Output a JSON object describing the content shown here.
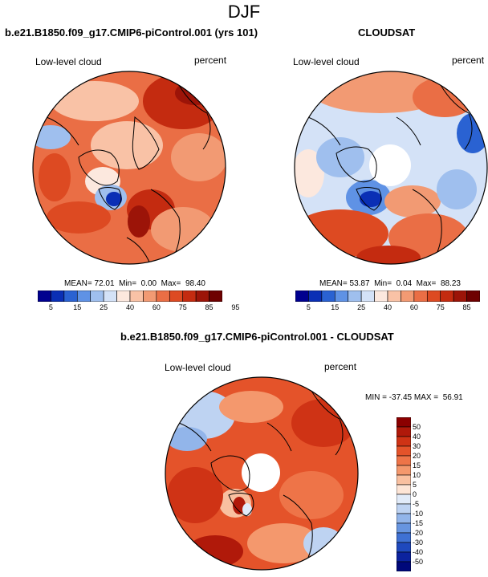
{
  "season": "DJF",
  "panels": [
    {
      "title": "b.e21.B1850.f09_g17.CMIP6-piControl.001 (yrs 101)",
      "variable": "Low-level cloud",
      "units": "percent",
      "stats": {
        "mean": "72.01",
        "min": "0.00",
        "max": "98.40"
      },
      "mean_label": "MEAN=",
      "min_label": "Min=",
      "max_label": "Max="
    },
    {
      "title": "CLOUDSAT",
      "variable": "Low-level cloud",
      "units": "percent",
      "stats": {
        "mean": "53.87",
        "min": "0.04",
        "max": "88.23"
      },
      "mean_label": "MEAN=",
      "min_label": "Min=",
      "max_label": "Max="
    },
    {
      "title": "b.e21.B1850.f09_g17.CMIP6-piControl.001 - CLOUDSAT",
      "variable": "Low-level cloud",
      "units": "percent",
      "range_text": "MIN = -37.45 MAX =  56.91"
    }
  ],
  "colorbar_abs": {
    "ticks": [
      "5",
      "15",
      "25",
      "40",
      "60",
      "75",
      "85",
      "95"
    ],
    "colors": [
      "#00008f",
      "#0a2fb5",
      "#2a62d2",
      "#5f92e5",
      "#9fbfee",
      "#d4e2f7",
      "#fce8de",
      "#f9c2a6",
      "#f29a73",
      "#ea6e45",
      "#dd4a22",
      "#c42b10",
      "#9c1408",
      "#6e0000"
    ]
  },
  "colorbar_diff": {
    "ticks": [
      "50",
      "40",
      "30",
      "20",
      "15",
      "10",
      "5",
      "0",
      "-5",
      "-10",
      "-15",
      "-20",
      "-30",
      "-40",
      "-50"
    ],
    "colors": [
      "#8b0000",
      "#b0190a",
      "#cf3315",
      "#e4532a",
      "#ee7448",
      "#f4986d",
      "#f9c0a0",
      "#fde5d6",
      "#e1ebf9",
      "#bed3f2",
      "#92b5ea",
      "#6795e0",
      "#3f71d3",
      "#1f49bd",
      "#0c239e",
      "#00087a"
    ]
  }
}
